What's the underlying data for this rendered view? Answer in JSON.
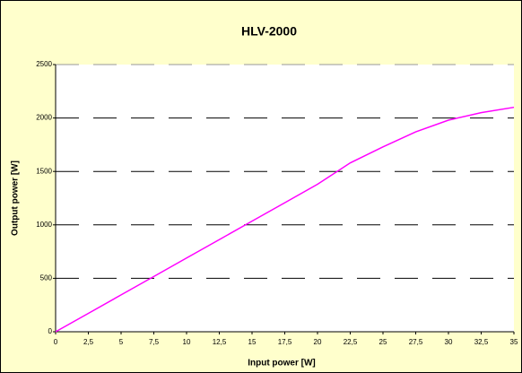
{
  "chart_data": {
    "type": "line",
    "title": "HLV-2000",
    "x_label": "Input power [W]",
    "y_label": "Output power [W]",
    "x": [
      0,
      2.5,
      5,
      7.5,
      10,
      12.5,
      15,
      17.5,
      20,
      22.5,
      25,
      27.5,
      30,
      32.5,
      35
    ],
    "series": [
      {
        "name": "HLV-2000",
        "color": "#ff00ff",
        "values": [
          0,
          172,
          345,
          517,
          690,
          862,
          1035,
          1207,
          1380,
          1580,
          1730,
          1870,
          1980,
          2050,
          2100
        ]
      }
    ],
    "xlim": [
      0,
      35
    ],
    "xticks": [
      0,
      {
        "value": 2.5,
        "label": "2,5"
      },
      5,
      {
        "value": 7.5,
        "label": "7,5"
      },
      10,
      {
        "value": 12.5,
        "label": "12,5"
      },
      15,
      {
        "value": 17.5,
        "label": "17,5"
      },
      20,
      {
        "value": 22.5,
        "label": "22,5"
      },
      25,
      {
        "value": 27.5,
        "label": "27,5"
      },
      30,
      {
        "value": 32.5,
        "label": "32,5"
      },
      35
    ],
    "ylim": [
      0,
      2500
    ],
    "yticks": [
      0,
      500,
      1000,
      1500,
      2000,
      2500
    ],
    "grid": true
  }
}
